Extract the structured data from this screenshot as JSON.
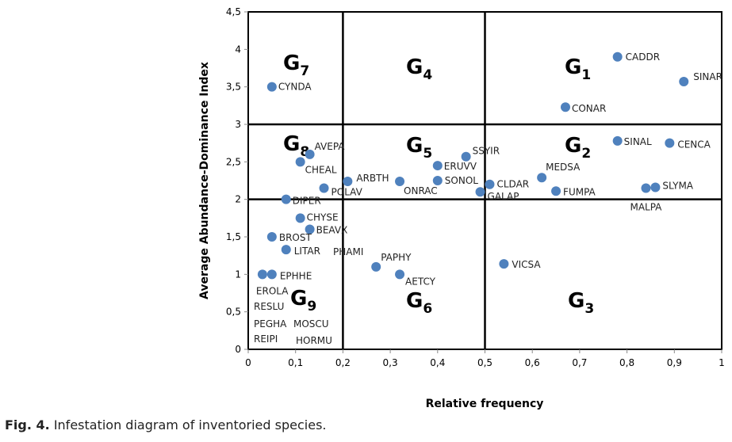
{
  "chart_data": {
    "type": "scatter",
    "xlabel": "Relative frequency",
    "ylabel": "Average Abundance-Dominance Index",
    "xlim": [
      0,
      1
    ],
    "ylim": [
      0,
      4.5
    ],
    "xticks": [
      "0",
      "0,1",
      "0,2",
      "0,3",
      "0,4",
      "0,5",
      "0,6",
      "0,7",
      "0,8",
      "0,9",
      "1"
    ],
    "yticks": [
      "0",
      "0,5",
      "1",
      "1,5",
      "2",
      "2,5",
      "3",
      "3,5",
      "4",
      "4,5"
    ],
    "grid": false,
    "marker_color": "#4f81bd",
    "dividers": {
      "x": [
        0.2,
        0.5
      ],
      "y": [
        2,
        3
      ]
    },
    "groups": [
      {
        "letter": "G",
        "sub": "7"
      },
      {
        "letter": "G",
        "sub": "4"
      },
      {
        "letter": "G",
        "sub": "1"
      },
      {
        "letter": "G",
        "sub": "8"
      },
      {
        "letter": "G",
        "sub": "5"
      },
      {
        "letter": "G",
        "sub": "2"
      },
      {
        "letter": "G",
        "sub": "9"
      },
      {
        "letter": "G",
        "sub": "6"
      },
      {
        "letter": "G",
        "sub": "3"
      }
    ],
    "points": [
      {
        "name": "CYNDA",
        "x": 0.05,
        "y": 3.5
      },
      {
        "name": "CADDR",
        "x": 0.78,
        "y": 3.9
      },
      {
        "name": "SINAR",
        "x": 0.92,
        "y": 3.57
      },
      {
        "name": "CONAR",
        "x": 0.67,
        "y": 3.23
      },
      {
        "name": "AVEPA",
        "x": 0.13,
        "y": 2.6
      },
      {
        "name": "CHEAL",
        "x": 0.11,
        "y": 2.5
      },
      {
        "name": "ARBTH",
        "x": 0.21,
        "y": 2.24
      },
      {
        "name": "POLAV",
        "x": 0.16,
        "y": 2.15
      },
      {
        "name": "ONRAC",
        "x": 0.32,
        "y": 2.24
      },
      {
        "name": "ERUVV",
        "x": 0.4,
        "y": 2.45
      },
      {
        "name": "SONOL",
        "x": 0.4,
        "y": 2.25
      },
      {
        "name": "SSYIR",
        "x": 0.46,
        "y": 2.57
      },
      {
        "name": "GALAP",
        "x": 0.49,
        "y": 2.1
      },
      {
        "name": "CLDAR",
        "x": 0.51,
        "y": 2.2
      },
      {
        "name": "MEDSA",
        "x": 0.62,
        "y": 2.29
      },
      {
        "name": "FUMPA",
        "x": 0.65,
        "y": 2.11
      },
      {
        "name": "SINAL",
        "x": 0.78,
        "y": 2.78
      },
      {
        "name": "CENCA",
        "x": 0.89,
        "y": 2.75
      },
      {
        "name": "MALPA",
        "x": 0.84,
        "y": 2.15
      },
      {
        "name": "SLYMA",
        "x": 0.86,
        "y": 2.16
      },
      {
        "name": "DIPER",
        "x": 0.08,
        "y": 2.0
      },
      {
        "name": "CHYSE",
        "x": 0.11,
        "y": 1.75
      },
      {
        "name": "BEAVX",
        "x": 0.13,
        "y": 1.6
      },
      {
        "name": "BROST",
        "x": 0.05,
        "y": 1.5
      },
      {
        "name": "LITAR",
        "x": 0.08,
        "y": 1.33
      },
      {
        "name": "PAPHY",
        "x": 0.27,
        "y": 1.1
      },
      {
        "name": "AETCY",
        "x": 0.32,
        "y": 1.0
      },
      {
        "name": "VICSA",
        "x": 0.54,
        "y": 1.14
      },
      {
        "name": "EROLA",
        "x": 0.03,
        "y": 1.0
      },
      {
        "name": "EPHHE",
        "x": 0.05,
        "y": 1.0
      }
    ],
    "free_labels": [
      "PHAMI",
      "RESLU",
      "PEGHA",
      "MOSCU",
      "REIPI",
      "HORMU"
    ]
  },
  "caption": {
    "prefix": "Fig. 4.",
    "text": " Infestation diagram of inventoried species."
  }
}
